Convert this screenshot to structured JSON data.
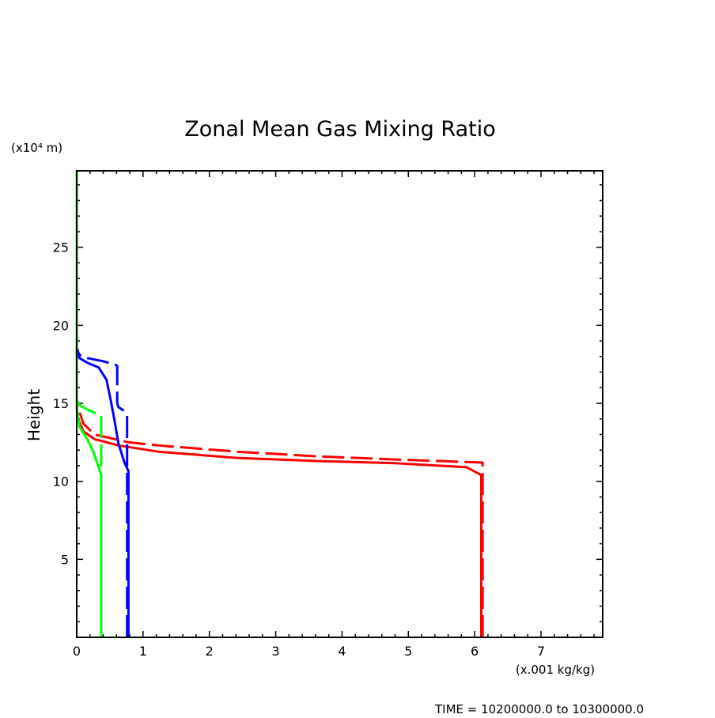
{
  "chart_data": {
    "type": "line",
    "title": "Zonal Mean Gas Mixing Ratio",
    "xlabel": "(x.001 kg/kg)",
    "ylabel": "Height",
    "yunit": "(x10⁴ m)",
    "footer": "TIME = 10200000.0 to 10300000.0",
    "xlim": [
      0,
      7.93
    ],
    "ylim": [
      0,
      29.9
    ],
    "xticks": [
      "0",
      "1",
      "2",
      "3",
      "4",
      "5",
      "6",
      "7"
    ],
    "yticks": [
      "5",
      "10",
      "15",
      "20",
      "25"
    ],
    "grid": false,
    "series": [
      {
        "color": "#ff0000",
        "dash": false,
        "points": [
          [
            6.1,
            0
          ],
          [
            6.1,
            10.4
          ],
          [
            5.88,
            10.9
          ],
          [
            4.81,
            11.16
          ],
          [
            3.62,
            11.3
          ],
          [
            2.42,
            11.5
          ],
          [
            1.23,
            11.9
          ],
          [
            0.63,
            12.3
          ],
          [
            0.27,
            12.7
          ],
          [
            0.1,
            13.2
          ],
          [
            0.02,
            14
          ],
          [
            0,
            14.75
          ]
        ]
      },
      {
        "color": "#ff0000",
        "dash": true,
        "points": [
          [
            6.12,
            0
          ],
          [
            6.12,
            11.2
          ],
          [
            4.81,
            11.4
          ],
          [
            3.62,
            11.6
          ],
          [
            2.42,
            11.9
          ],
          [
            1.23,
            12.3
          ],
          [
            0.78,
            12.5
          ],
          [
            0.27,
            13.0
          ],
          [
            0.1,
            13.7
          ],
          [
            0,
            15
          ]
        ]
      },
      {
        "color": "#0000ff",
        "dash": false,
        "points": [
          [
            0.78,
            0
          ],
          [
            0.78,
            10.65
          ],
          [
            0.72,
            11.2
          ],
          [
            0.63,
            12.4
          ],
          [
            0.57,
            13.9
          ],
          [
            0.51,
            15.25
          ],
          [
            0.45,
            16.5
          ],
          [
            0.33,
            17.3
          ],
          [
            0.16,
            17.6
          ],
          [
            0.04,
            17.9
          ],
          [
            0.01,
            18.5
          ]
        ]
      },
      {
        "color": "#0000ff",
        "dash": true,
        "points": [
          [
            0.76,
            0
          ],
          [
            0.76,
            14.2
          ],
          [
            0.72,
            14.5
          ],
          [
            0.63,
            14.75
          ],
          [
            0.61,
            15
          ],
          [
            0.61,
            17.4
          ],
          [
            0.57,
            17.5
          ],
          [
            0.39,
            17.7
          ],
          [
            0.16,
            17.9
          ],
          [
            0.04,
            18.1
          ],
          [
            0,
            18.5
          ]
        ]
      },
      {
        "color": "#00ff00",
        "dash": false,
        "points": [
          [
            0.37,
            0
          ],
          [
            0.37,
            10.4
          ],
          [
            0.33,
            10.9
          ],
          [
            0.25,
            11.9
          ],
          [
            0.16,
            12.7
          ],
          [
            0.04,
            13.5
          ],
          [
            0,
            14.75
          ],
          [
            0,
            29.9
          ]
        ]
      },
      {
        "color": "#00ff00",
        "dash": true,
        "points": [
          [
            0.37,
            0
          ],
          [
            0.37,
            14.2
          ],
          [
            0.27,
            14.4
          ],
          [
            0.16,
            14.6
          ],
          [
            0.04,
            14.9
          ],
          [
            0,
            15.3
          ]
        ]
      }
    ]
  }
}
